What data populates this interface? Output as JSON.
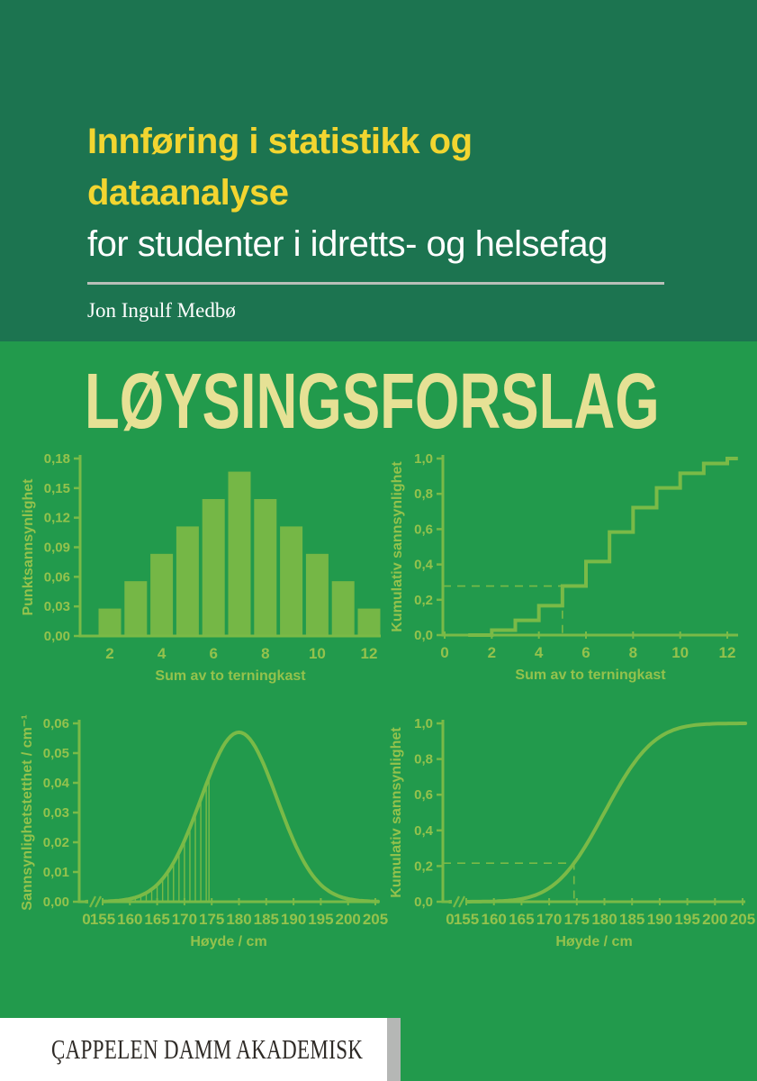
{
  "cover": {
    "title_line1": "Innføring i statistikk og",
    "title_line2": "dataanalyse",
    "subtitle": "for studenter i idretts- og helsefag",
    "author": "Jon Ingulf Medbø",
    "solution_title": "LØYSINGSFORSLAG",
    "publisher": "ÇAPPELEN DAMM AKADEMISK"
  },
  "colors": {
    "header_bg": "#1c7450",
    "body_bg": "#229a4c",
    "title_yellow": "#f2d530",
    "subtitle_white": "#ffffff",
    "divider_gray": "#b9bfb9",
    "solution_pale_yellow": "#e6e195",
    "chart_line_green": "#7aba47",
    "chart_bar_green": "#75b746",
    "chart_text_green": "#94c24c",
    "footer_white": "#ffffff",
    "footer_gray": "#b5b7b5",
    "logo_dark": "#2e2a26"
  },
  "chart_data": [
    {
      "id": "dice-pmf",
      "type": "bar",
      "title": "",
      "xlabel": "Sum av to terningkast",
      "ylabel": "Punktsannsynlighet",
      "categories": [
        2,
        3,
        4,
        5,
        6,
        7,
        8,
        9,
        10,
        11,
        12
      ],
      "values": [
        0.0278,
        0.0556,
        0.0833,
        0.1111,
        0.1389,
        0.1667,
        0.1389,
        0.1111,
        0.0833,
        0.0556,
        0.0278
      ],
      "ylim": [
        0,
        0.18
      ],
      "yticks": [
        0,
        0.03,
        0.06,
        0.09,
        0.12,
        0.15,
        0.18
      ],
      "ytick_labels": [
        "0,00",
        "0,03",
        "0,06",
        "0,09",
        "0,12",
        "0,15",
        "0,18"
      ],
      "xticks": [
        2,
        4,
        6,
        8,
        10,
        12
      ],
      "xtick_labels": [
        "2",
        "4",
        "6",
        "8",
        "10",
        "12"
      ],
      "grid": false,
      "legend": false
    },
    {
      "id": "dice-cdf",
      "type": "step",
      "title": "",
      "xlabel": "Sum av to terningkast",
      "ylabel": "Kumulativ sannsynlighet",
      "x": [
        1,
        2,
        3,
        4,
        5,
        6,
        7,
        8,
        9,
        10,
        11,
        12
      ],
      "values": [
        0,
        0.0278,
        0.0833,
        0.1667,
        0.2778,
        0.4167,
        0.5833,
        0.7222,
        0.8333,
        0.9167,
        0.9722,
        1.0
      ],
      "extend_to": 12.45,
      "ylim": [
        0,
        1
      ],
      "yticks": [
        0,
        0.2,
        0.4,
        0.6,
        0.8,
        1.0
      ],
      "ytick_labels": [
        "0,0",
        "0,2",
        "0,4",
        "0,6",
        "0,8",
        "1,0"
      ],
      "xticks": [
        0,
        2,
        4,
        6,
        8,
        10,
        12
      ],
      "xtick_labels": [
        "0",
        "2",
        "4",
        "6",
        "8",
        "10",
        "12"
      ],
      "guide": {
        "x": 5,
        "y": 0.2778,
        "style": "dashed"
      },
      "grid": false,
      "legend": false
    },
    {
      "id": "height-pdf",
      "type": "curve",
      "curve": "normal_pdf",
      "title": "",
      "xlabel": "Høyde / cm",
      "ylabel": "Sannsynlighetstetthet / cm⁻¹",
      "mean": 180,
      "sd": 7,
      "peak": 0.057,
      "xrange": [
        152,
        205.5
      ],
      "ylim": [
        0,
        0.06
      ],
      "yticks": [
        0,
        0.01,
        0.02,
        0.03,
        0.04,
        0.05,
        0.06
      ],
      "ytick_labels": [
        "0,00",
        "0,01",
        "0,02",
        "0,03",
        "0,04",
        "0,05",
        "0,06"
      ],
      "xticks": [
        155,
        160,
        165,
        170,
        175,
        180,
        185,
        190,
        195,
        200,
        205
      ],
      "xtick_labels": [
        "155",
        "160",
        "165",
        "170",
        "175",
        "180",
        "185",
        "190",
        "195",
        "200",
        "205"
      ],
      "zero_label": "0",
      "axis_break": true,
      "hatch_x": [
        160,
        161,
        162,
        163,
        164,
        165,
        166,
        167,
        168,
        169,
        170,
        171,
        172,
        173,
        174,
        174.5
      ],
      "grid": false,
      "legend": false
    },
    {
      "id": "height-cdf",
      "type": "curve",
      "curve": "normal_cdf",
      "title": "",
      "xlabel": "Høyde / cm",
      "ylabel": "Kumulativ sannsynlighet",
      "mean": 180,
      "sd": 7,
      "xrange": [
        152,
        205.5
      ],
      "ylim": [
        0,
        1
      ],
      "yticks": [
        0,
        0.2,
        0.4,
        0.6,
        0.8,
        1.0
      ],
      "ytick_labels": [
        "0,0",
        "0,2",
        "0,4",
        "0,6",
        "0,8",
        "1,0"
      ],
      "xticks": [
        155,
        160,
        165,
        170,
        175,
        180,
        185,
        190,
        195,
        200,
        205
      ],
      "xtick_labels": [
        "155",
        "160",
        "165",
        "170",
        "175",
        "180",
        "185",
        "190",
        "195",
        "200",
        "205"
      ],
      "zero_label": "0",
      "axis_break": true,
      "guide": {
        "x": 174.5,
        "y": 0.216,
        "style": "dashed"
      },
      "grid": false,
      "legend": false
    }
  ]
}
